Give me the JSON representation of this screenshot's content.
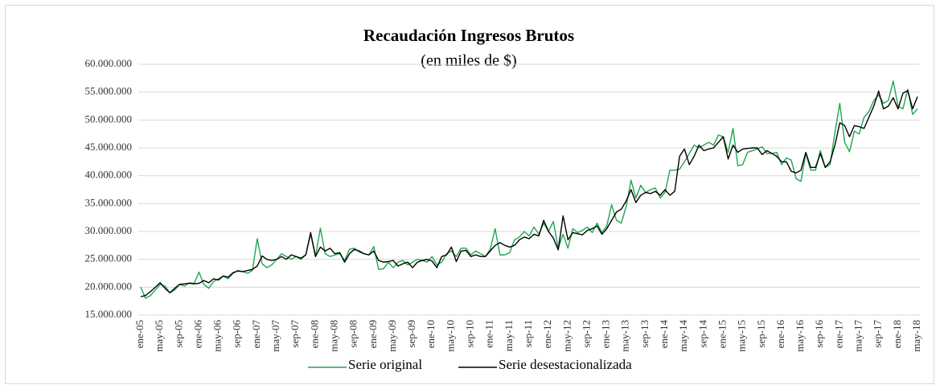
{
  "chart_data": {
    "type": "line",
    "title": "Recaudación Ingresos Brutos",
    "subtitle": "(en miles de $)",
    "categories": [
      "ene-05",
      null,
      null,
      null,
      "may-05",
      null,
      null,
      null,
      "sep-05",
      null,
      null,
      null,
      "ene-06",
      null,
      null,
      null,
      "may-06",
      null,
      null,
      null,
      "sep-06",
      null,
      null,
      null,
      "ene-07",
      null,
      null,
      null,
      "may-07",
      null,
      null,
      null,
      "sep-07",
      null,
      null,
      null,
      "ene-08",
      null,
      null,
      null,
      "may-08",
      null,
      null,
      null,
      "sep-08",
      null,
      null,
      null,
      "ene-09",
      null,
      null,
      null,
      "may-09",
      null,
      null,
      null,
      "sep-09",
      null,
      null,
      null,
      "ene-10",
      null,
      null,
      null,
      "may-10",
      null,
      null,
      null,
      "sep-10",
      null,
      null,
      null,
      "ene-11",
      null,
      null,
      null,
      "may-11",
      null,
      null,
      null,
      "sep-11",
      null,
      null,
      null,
      "ene-12",
      null,
      null,
      null,
      "may-12",
      null,
      null,
      null,
      "sep-12",
      null,
      null,
      null,
      "ene-13",
      null,
      null,
      null,
      "may-13",
      null,
      null,
      null,
      "sep-13",
      null,
      null,
      null,
      "ene-14",
      null,
      null,
      null,
      "may-14",
      null,
      null,
      null,
      "sep-14",
      null,
      null,
      null,
      "ene-15",
      null,
      null,
      null,
      "may-15",
      null,
      null,
      null,
      "sep-15",
      null,
      null,
      null,
      "ene-16",
      null,
      null,
      null,
      "may-16",
      null,
      null,
      null,
      "sep-16",
      null,
      null,
      null,
      "ene-17",
      null,
      null,
      null,
      "may-17",
      null,
      null,
      null,
      "sep-17",
      null,
      null,
      null,
      "ene-18",
      null,
      null,
      null,
      "may-18"
    ],
    "series": [
      {
        "name": "Serie original",
        "color": "#1fa64f",
        "values": [
          20000000,
          18000000,
          18500000,
          19500000,
          20500000,
          20200000,
          19000000,
          19500000,
          20500000,
          20200000,
          20800000,
          20700000,
          22700000,
          20500000,
          19800000,
          21000000,
          21500000,
          22000000,
          21500000,
          22500000,
          23000000,
          22800000,
          22500000,
          23000000,
          28700000,
          24200000,
          23500000,
          24000000,
          25000000,
          26000000,
          25500000,
          25000000,
          25500000,
          25000000,
          25800000,
          29500000,
          25500000,
          30600000,
          26000000,
          25500000,
          25800000,
          26000000,
          24800000,
          26800000,
          27000000,
          26300000,
          26000000,
          25800000,
          27300000,
          23200000,
          23300000,
          24500000,
          23500000,
          24500000,
          24800000,
          24000000,
          24500000,
          25000000,
          24800000,
          24500000,
          25500000,
          24000000,
          24500000,
          26000000,
          26500000,
          25500000,
          27000000,
          27000000,
          25800000,
          26500000,
          26000000,
          25500000,
          26800000,
          30500000,
          25800000,
          25800000,
          26200000,
          28500000,
          29000000,
          30000000,
          29200000,
          30800000,
          29500000,
          31500000,
          30000000,
          31800000,
          27000000,
          29500000,
          27000000,
          30500000,
          29800000,
          30200000,
          30800000,
          29800000,
          31500000,
          29800000,
          31000000,
          34800000,
          32000000,
          31500000,
          34500000,
          39200000,
          36000000,
          38300000,
          37000000,
          37500000,
          37800000,
          36000000,
          37000000,
          41000000,
          41000000,
          41200000,
          42500000,
          44000000,
          45500000,
          45000000,
          45500000,
          46000000,
          45500000,
          47300000,
          47000000,
          44200000,
          48500000,
          41800000,
          42000000,
          44200000,
          44500000,
          44800000,
          45200000,
          44000000,
          44000000,
          44200000,
          42000000,
          43200000,
          42800000,
          39500000,
          39000000,
          44000000,
          41000000,
          41000000,
          44500000,
          41500000,
          42000000,
          47800000,
          53000000,
          46000000,
          44300000,
          48000000,
          47500000,
          50500000,
          51500000,
          53500000,
          54500000,
          53000000,
          53500000,
          57000000,
          52500000,
          52000000,
          55500000,
          51000000,
          52000000
        ]
      },
      {
        "name": "Serie desestacionalizada",
        "color": "#000000",
        "values": [
          18300000,
          18500000,
          19200000,
          20000000,
          20800000,
          19800000,
          19000000,
          19800000,
          20500000,
          20600000,
          20700000,
          20600000,
          20700000,
          21200000,
          20800000,
          21500000,
          21300000,
          22000000,
          21800000,
          22600000,
          22900000,
          22800000,
          23000000,
          23200000,
          23800000,
          25600000,
          25000000,
          24800000,
          25000000,
          25500000,
          25000000,
          25800000,
          25500000,
          25200000,
          25800000,
          29800000,
          25500000,
          27200000,
          26500000,
          27000000,
          26000000,
          26200000,
          24500000,
          26000000,
          26800000,
          26500000,
          26000000,
          25800000,
          26500000,
          24800000,
          24500000,
          24600000,
          24800000,
          23800000,
          24200000,
          24500000,
          23500000,
          24500000,
          24800000,
          25000000,
          24700000,
          23500000,
          25500000,
          25800000,
          27200000,
          24600000,
          26500000,
          26600000,
          25500000,
          25800000,
          25500000,
          25500000,
          26500000,
          27500000,
          28000000,
          27500000,
          27200000,
          27500000,
          28500000,
          29000000,
          28700000,
          29500000,
          29200000,
          32000000,
          30000000,
          28800000,
          26700000,
          32800000,
          28500000,
          29800000,
          29600000,
          29400000,
          30200000,
          30500000,
          31000000,
          29500000,
          30500000,
          32000000,
          33500000,
          34000000,
          35500000,
          37500000,
          35200000,
          36500000,
          37000000,
          36800000,
          37200000,
          36500000,
          37500000,
          36500000,
          37200000,
          43500000,
          44800000,
          42000000,
          43500000,
          45500000,
          44500000,
          44800000,
          45000000,
          46000000,
          47000000,
          43000000,
          45500000,
          44200000,
          44800000,
          44900000,
          45000000,
          45000000,
          43800000,
          44500000,
          44000000,
          43500000,
          42500000,
          42500000,
          40800000,
          40500000,
          41000000,
          44200000,
          41500000,
          41500000,
          44000000,
          41500000,
          42500000,
          45500000,
          49500000,
          49000000,
          47000000,
          49000000,
          48800000,
          48500000,
          50500000,
          52500000,
          55200000,
          52000000,
          52500000,
          54000000,
          52000000,
          54800000,
          55300000,
          52000000,
          54200000
        ]
      }
    ],
    "ylim": [
      15000000,
      60000000
    ],
    "yticks": [
      {
        "value": 15000000,
        "label": "15.000.000"
      },
      {
        "value": 20000000,
        "label": "20.000.000"
      },
      {
        "value": 25000000,
        "label": "25.000.000"
      },
      {
        "value": 30000000,
        "label": "30.000.000"
      },
      {
        "value": 35000000,
        "label": "35.000.000"
      },
      {
        "value": 40000000,
        "label": "40.000.000"
      },
      {
        "value": 45000000,
        "label": "45.000.000"
      },
      {
        "value": 50000000,
        "label": "50.000.000"
      },
      {
        "value": 55000000,
        "label": "55.000.000"
      },
      {
        "value": 60000000,
        "label": "60.000.000"
      }
    ],
    "grid": true,
    "legend": "bottom"
  }
}
